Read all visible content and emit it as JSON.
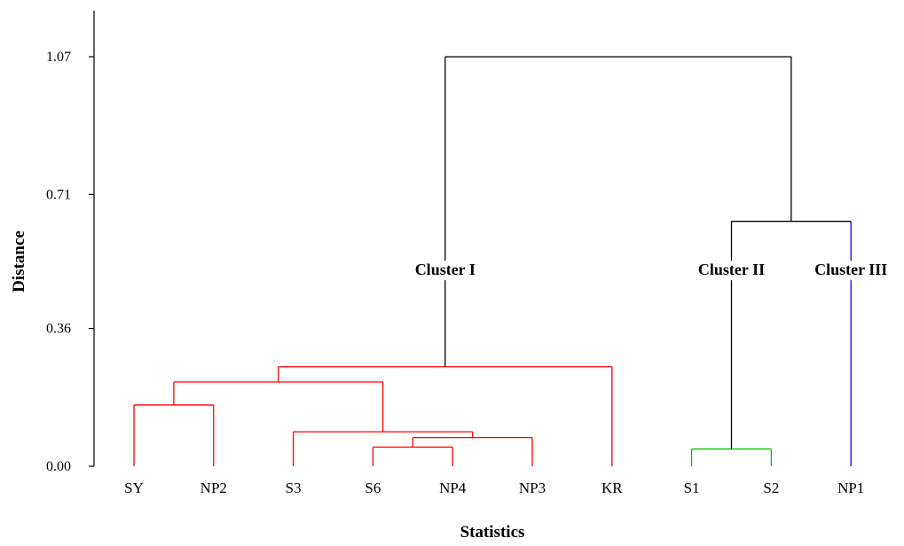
{
  "chart_data": {
    "type": "dendrogram",
    "xlabel": "Statistics",
    "ylabel": "Distance",
    "yticks": [
      "0.00",
      "0.36",
      "0.71",
      "1.07"
    ],
    "ylim": [
      0,
      1.07
    ],
    "leaves": [
      "SY",
      "NP2",
      "S3",
      "S6",
      "NP4",
      "NP3",
      "KR",
      "S1",
      "S2",
      "NP1"
    ],
    "merges": [
      {
        "left": "S6",
        "right": "NP4",
        "height": 0.05,
        "color": "#ff0000"
      },
      {
        "left": "S6+NP4",
        "right": "NP3",
        "height": 0.075,
        "color": "#ff0000"
      },
      {
        "left": "S3",
        "right": "S6+NP4+NP3",
        "height": 0.09,
        "color": "#ff0000"
      },
      {
        "left": "SY",
        "right": "NP2",
        "height": 0.16,
        "color": "#ff0000"
      },
      {
        "left": "SY+NP2",
        "right": "S3+S6+NP4+NP3",
        "height": 0.22,
        "color": "#ff0000"
      },
      {
        "left": "SY+NP2+S3+S6+NP4+NP3",
        "right": "KR",
        "height": 0.26,
        "color": "#ff0000"
      },
      {
        "left": "S1",
        "right": "S2",
        "height": 0.045,
        "color": "#00c800"
      },
      {
        "left": "S1+S2",
        "right": "NP1",
        "height": 0.64,
        "color": "#000000"
      },
      {
        "left": "Cluster I",
        "right": "S1+S2+NP1",
        "height": 1.07,
        "color": "#000000"
      }
    ],
    "leaf_colors": {
      "NP1": "#0000ff"
    },
    "annotations": [
      "Cluster I",
      "Cluster II",
      "Cluster III"
    ]
  }
}
